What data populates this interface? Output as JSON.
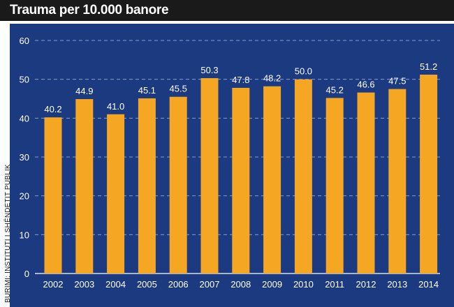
{
  "title": "Trauma per 10.000 banore",
  "source": "BURIMI: INSTITUTI I SHËNDETIT PUBLIK",
  "colors": {
    "background": "#1b3a80",
    "bar": "#f5a623",
    "title_bar": "#1a1a1a",
    "grid": "#8a9cc8",
    "text": "#ffffff"
  },
  "chart_data": {
    "type": "bar",
    "title": "Trauma per 10.000 banore",
    "categories": [
      "2002",
      "2003",
      "2004",
      "2005",
      "2006",
      "2007",
      "2008",
      "2009",
      "2010",
      "2011",
      "2012",
      "2013",
      "2014"
    ],
    "values": [
      40.2,
      44.9,
      41.0,
      45.1,
      45.5,
      50.3,
      47.8,
      48.2,
      50.0,
      45.2,
      46.6,
      47.5,
      51.2
    ],
    "value_labels": [
      "40.2",
      "44.9",
      "41.0",
      "45.1",
      "45.5",
      "50.3",
      "47.8",
      "48.2",
      "50.0",
      "45.2",
      "46.6",
      "47.5",
      "51.2"
    ],
    "ylim": [
      0,
      60
    ],
    "yticks": [
      0,
      10,
      20,
      30,
      40,
      50,
      60
    ],
    "xlabel": "",
    "ylabel": "",
    "grid": true
  }
}
